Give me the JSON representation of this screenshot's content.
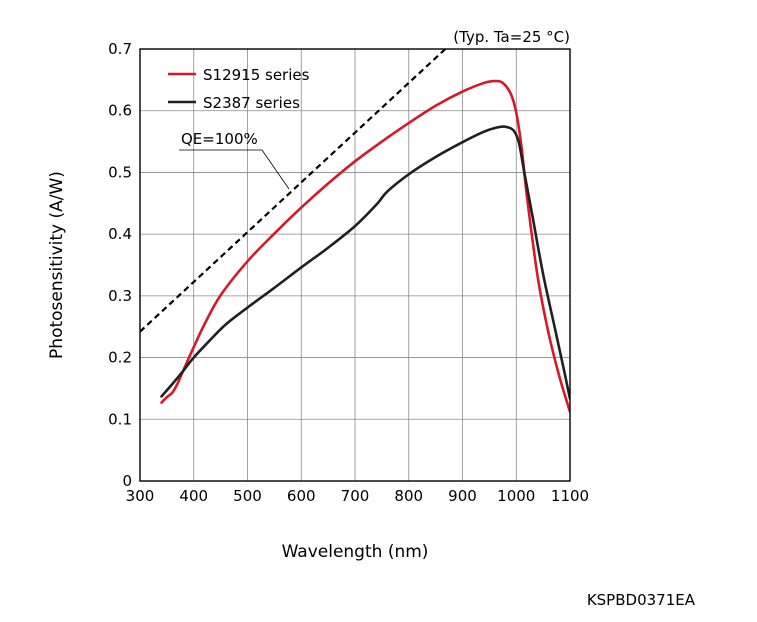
{
  "chart_data": {
    "type": "line",
    "condition_note": "(Typ. Ta=25 °C)",
    "xlabel": "Wavelength (nm)",
    "ylabel": "Photosensitivity (A/W)",
    "xlim": [
      300,
      1100
    ],
    "ylim": [
      0,
      0.7
    ],
    "x_ticks": [
      "300",
      "400",
      "500",
      "600",
      "700",
      "800",
      "900",
      "1000",
      "1100"
    ],
    "y_ticks": [
      "0",
      "0.1",
      "0.2",
      "0.3",
      "0.4",
      "0.5",
      "0.6",
      "0.7"
    ],
    "grid": true,
    "legend_position": "top-left",
    "series": [
      {
        "name": "S12915 series",
        "color": "#d7182a",
        "x": [
          340,
          350,
          360,
          370,
          380,
          400,
          420,
          450,
          500,
          550,
          600,
          650,
          700,
          750,
          800,
          850,
          900,
          940,
          960,
          975,
          990,
          1000,
          1010,
          1020,
          1040,
          1060,
          1080,
          1100
        ],
        "y": [
          0.127,
          0.136,
          0.143,
          0.158,
          0.178,
          0.217,
          0.254,
          0.301,
          0.356,
          0.401,
          0.443,
          0.482,
          0.518,
          0.55,
          0.58,
          0.608,
          0.631,
          0.645,
          0.648,
          0.645,
          0.627,
          0.597,
          0.54,
          0.46,
          0.33,
          0.24,
          0.17,
          0.112
        ]
      },
      {
        "name": "S2387 series",
        "color": "#231f20",
        "x": [
          340,
          360,
          380,
          400,
          430,
          460,
          500,
          550,
          600,
          650,
          700,
          740,
          760,
          800,
          850,
          900,
          940,
          965,
          980,
          995,
          1005,
          1015,
          1030,
          1050,
          1070,
          1090,
          1100
        ],
        "y": [
          0.137,
          0.157,
          0.178,
          0.2,
          0.228,
          0.254,
          0.281,
          0.313,
          0.346,
          0.378,
          0.413,
          0.448,
          0.469,
          0.497,
          0.525,
          0.549,
          0.566,
          0.573,
          0.574,
          0.568,
          0.548,
          0.5,
          0.43,
          0.335,
          0.255,
          0.175,
          0.133
        ]
      }
    ],
    "reference_line": {
      "label": "QE=100%",
      "style": "dashed",
      "color": "#000000",
      "x": [
        300,
        1100
      ],
      "y": [
        0.242,
        0.887
      ]
    }
  },
  "figure_code": "KSPBD0371EA"
}
